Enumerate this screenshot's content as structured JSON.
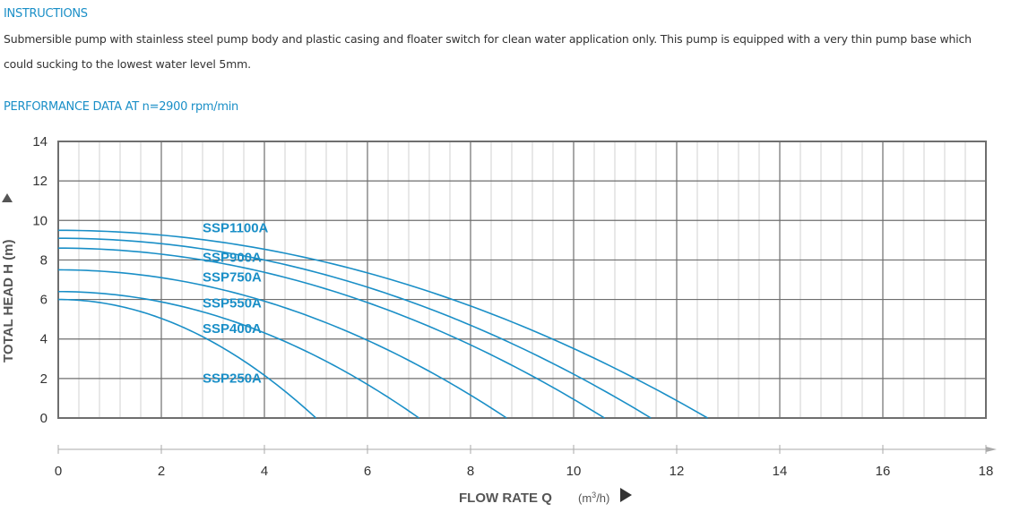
{
  "instructions": {
    "title": "INSTRUCTIONS",
    "text": "Submersible pump with stainless steel pump body and plastic casing and floater switch for clean water application only. This pump is equipped with a very thin pump base which could sucking to the lowest water level 5mm."
  },
  "performance": {
    "title": "PERFORMANCE DATA AT n=2900 rpm/min"
  },
  "colors": {
    "accent": "#1a8fc7",
    "grid_major": "#6e6e6e",
    "grid_minor": "#d0d0d0"
  },
  "chart_data": {
    "type": "line",
    "title": "PERFORMANCE DATA AT n=2900 rpm/min",
    "xlabel": "FLOW RATE Q",
    "xunit_prefix": "(m",
    "xunit_sup": "3",
    "xunit_suffix": "/h)",
    "ylabel": "TOTAL HEAD H (m)",
    "xlim": [
      0,
      18
    ],
    "ylim": [
      0,
      14
    ],
    "x_ticks": [
      "0",
      "2",
      "4",
      "6",
      "8",
      "10",
      "12",
      "14",
      "16",
      "18"
    ],
    "y_ticks": [
      "0",
      "2",
      "4",
      "6",
      "8",
      "10",
      "12",
      "14"
    ],
    "grid": true,
    "series": [
      {
        "name": "SSP1100A",
        "shutoff_head": 9.5,
        "max_flow": 12.6,
        "label_at": [
          2.8,
          9.4
        ]
      },
      {
        "name": "SSP900A",
        "shutoff_head": 9.1,
        "max_flow": 11.5,
        "label_at": [
          2.8,
          7.9
        ]
      },
      {
        "name": "SSP750A",
        "shutoff_head": 8.6,
        "max_flow": 10.6,
        "label_at": [
          2.8,
          6.9
        ]
      },
      {
        "name": "SSP550A",
        "shutoff_head": 7.5,
        "max_flow": 8.7,
        "label_at": [
          2.8,
          5.6
        ]
      },
      {
        "name": "SSP400A",
        "shutoff_head": 6.4,
        "max_flow": 7.0,
        "label_at": [
          2.8,
          4.3
        ]
      },
      {
        "name": "SSP250A",
        "shutoff_head": 6.0,
        "max_flow": 5.0,
        "label_at": [
          2.8,
          1.8
        ]
      }
    ]
  }
}
